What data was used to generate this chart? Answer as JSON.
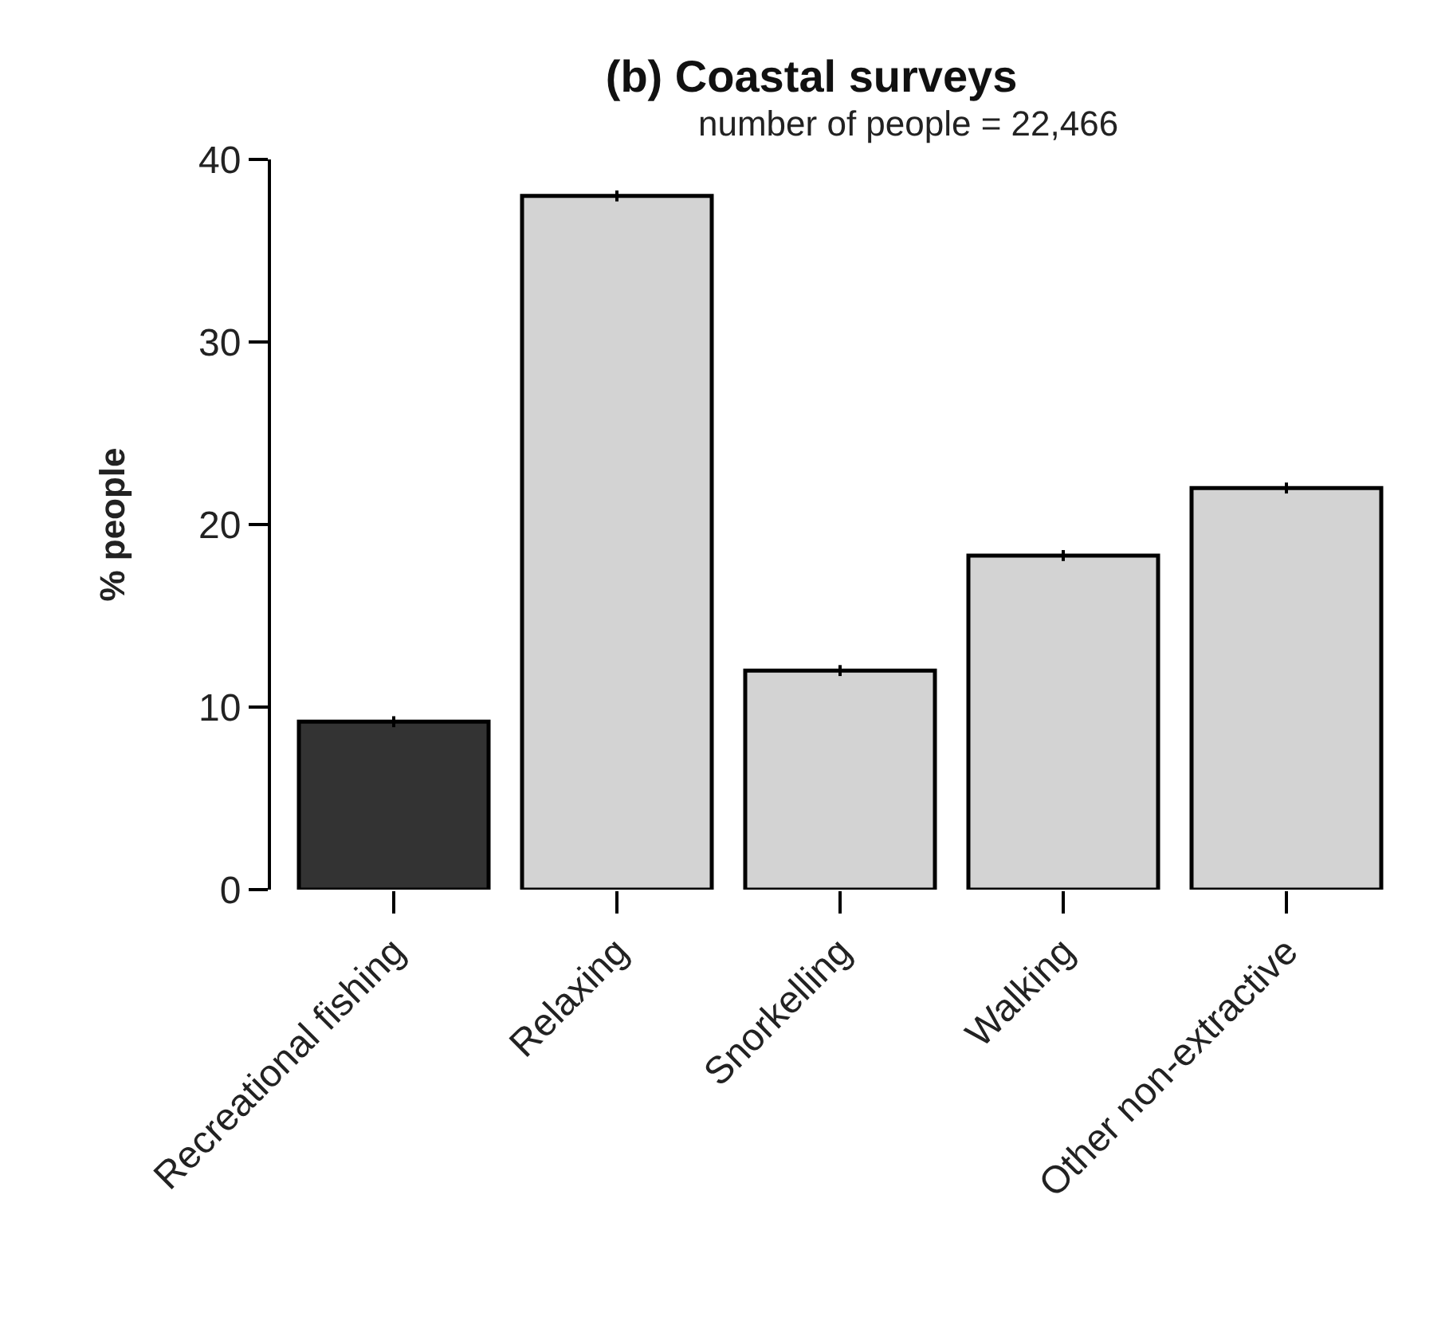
{
  "chart_data": {
    "type": "bar",
    "title": "(b) Coastal surveys",
    "subtitle": "number of people = 22,466",
    "ylabel": "% people",
    "categories": [
      "Recreational fishing",
      "Relaxing",
      "Snorkelling",
      "Walking",
      "Other non-extractive"
    ],
    "values": [
      9.2,
      38.0,
      12.0,
      18.3,
      22.0
    ],
    "errors": [
      0.3,
      0.3,
      0.3,
      0.3,
      0.3
    ],
    "colors": [
      "#333333",
      "#d3d3d3",
      "#d3d3d3",
      "#d3d3d3",
      "#d3d3d3"
    ],
    "ylim": [
      0,
      40
    ],
    "yticks": [
      0,
      10,
      20,
      30,
      40
    ]
  }
}
